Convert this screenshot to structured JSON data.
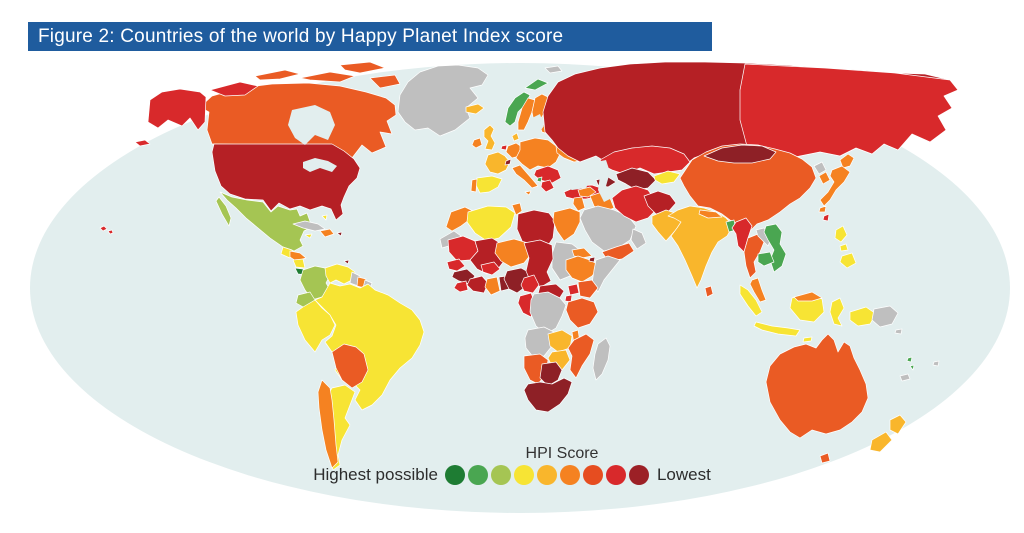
{
  "figure": {
    "title": "Figure 2: Countries of the world by Happy Planet Index score",
    "bar_color": "#1f5c9e",
    "title_text_color": "#ffffff"
  },
  "legend": {
    "title": "HPI Score",
    "left_label": "Highest possible",
    "right_label": "Lowest",
    "colors": [
      "#1e7c33",
      "#4aa651",
      "#a5c553",
      "#f7e434",
      "#f9b62c",
      "#f58221",
      "#e64d20",
      "#d8292b",
      "#9c2026"
    ]
  },
  "map": {
    "palette": {
      "ocean": "#e2eeee",
      "no_data": "#bfbfbf",
      "green_dark": "#1e7c33",
      "green": "#4aa651",
      "green_light": "#a5c553",
      "yellow": "#f7e434",
      "amber": "#f9b62c",
      "orange": "#f58221",
      "orange_red": "#ea5b24",
      "red": "#d8292b",
      "red_dark": "#b52025",
      "maroon": "#8e2026"
    },
    "countries": {
      "greenland": "no_data",
      "alaska": "red",
      "canada": "orange_red",
      "canada_arctic": "red",
      "usa": "red_dark",
      "hawaii": "red",
      "mexico": "green_light",
      "guatemala": "yellow",
      "honduras": "orange",
      "nicaragua": "yellow",
      "costa_rica": "green_dark",
      "panama": "green",
      "cuba": "no_data",
      "jamaica": "yellow",
      "hispaniola": "orange",
      "puerto_rico": "maroon",
      "bahamas": "yellow",
      "trinidad": "maroon",
      "colombia": "green_light",
      "venezuela": "yellow",
      "guyana": "no_data",
      "suriname": "orange",
      "french_guiana": "no_data",
      "ecuador": "green_light",
      "peru": "yellow",
      "brazil": "yellow",
      "bolivia": "orange_red",
      "chile": "orange",
      "argentina": "yellow",
      "iceland": "amber",
      "norway": "green",
      "sweden": "orange",
      "finland": "orange",
      "uk": "amber",
      "ireland": "orange",
      "portugal": "orange",
      "spain": "yellow",
      "france": "amber",
      "belgium": "red",
      "germany": "orange",
      "denmark": "amber",
      "switzerland": "maroon",
      "central_europe": "orange",
      "italy": "orange",
      "balkans": "red",
      "albania": "green",
      "greece": "red",
      "baltics": "orange",
      "belarus": "red",
      "ukraine": "orange",
      "russia": "red_dark",
      "russia_east": "red",
      "svalbard": "no_data",
      "novaya_zemlya": "no_data",
      "turkey": "red",
      "caucasus": "maroon",
      "syria": "orange",
      "iraq": "orange",
      "jordan_israel": "orange",
      "saudi_arabia": "no_data",
      "yemen": "orange_red",
      "oman": "no_data",
      "iran": "red",
      "afghanistan": "red_dark",
      "turkmen_uzbek": "maroon",
      "kazakhstan": "red",
      "kyrgyz_tajik": "yellow",
      "pakistan": "amber",
      "india": "amber",
      "nepal": "orange",
      "bangladesh": "green",
      "sri_lanka": "orange_red",
      "myanmar": "red",
      "thailand": "orange_red",
      "laos": "no_data",
      "vietnam": "green",
      "cambodia": "green",
      "malaysia": "orange",
      "china": "orange_red",
      "mongolia": "maroon",
      "north_korea": "no_data",
      "south_korea": "orange",
      "japan": "orange",
      "taiwan": "red",
      "philippines": "yellow",
      "indonesia": "yellow",
      "png": "no_data",
      "australia": "orange_red",
      "tasmania": "orange_red",
      "new_zealand": "amber",
      "vanuatu": "green",
      "fiji": "no_data",
      "new_caledonia": "no_data",
      "solomon": "no_data",
      "morocco": "orange",
      "western_sahara": "no_data",
      "algeria": "yellow",
      "tunisia": "orange",
      "libya": "red_dark",
      "egypt": "orange",
      "sudan": "no_data",
      "eritrea": "orange",
      "djibouti": "maroon",
      "ethiopia": "orange",
      "somalia": "no_data",
      "mauritania": "red",
      "mali": "red_dark",
      "senegal": "red",
      "guinea": "maroon",
      "sierra_leone": "red",
      "ivory_coast": "red_dark",
      "ghana": "orange",
      "togo_benin": "maroon",
      "burkina": "red",
      "niger": "orange",
      "nigeria": "maroon",
      "chad": "red_dark",
      "car": "red_dark",
      "cameroon": "red",
      "gabon_congo": "red",
      "drc": "no_data",
      "uganda": "red",
      "kenya": "orange_red",
      "rwanda_burundi": "red",
      "tanzania": "orange_red",
      "angola": "no_data",
      "zambia": "amber",
      "malawi": "orange",
      "mozambique": "orange_red",
      "zimbabwe": "amber",
      "namibia": "orange_red",
      "botswana": "maroon",
      "south_africa": "maroon",
      "madagascar": "no_data"
    }
  }
}
